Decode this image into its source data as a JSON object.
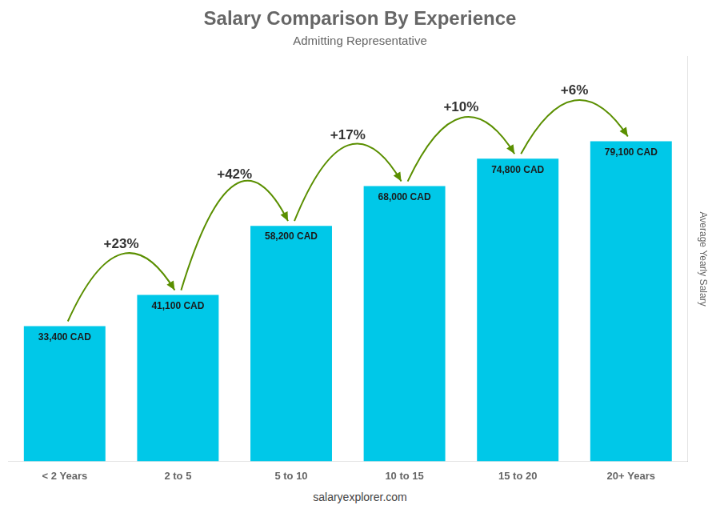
{
  "chart_data": {
    "type": "bar",
    "title": "Salary Comparison By Experience",
    "subtitle": "Admitting Representative",
    "ylabel": "Average Yearly Salary",
    "footer": "salaryexplorer.com",
    "categories": [
      "< 2 Years",
      "2 to 5",
      "5 to 10",
      "10 to 15",
      "15 to 20",
      "20+ Years"
    ],
    "values": [
      33400,
      41100,
      58200,
      68000,
      74800,
      79100
    ],
    "value_labels": [
      "33,400 CAD",
      "41,100 CAD",
      "58,200 CAD",
      "68,000 CAD",
      "74,800 CAD",
      "79,100 CAD"
    ],
    "data_labels": true,
    "color": "#00C8E8",
    "ylim": [
      0,
      100000
    ],
    "tick_labels": "x",
    "grid": false,
    "annotations": [
      {
        "text": "+23%",
        "from": "< 2 Years",
        "to": "2 to 5"
      },
      {
        "text": "+42%",
        "from": "2 to 5",
        "to": "5 to 10"
      },
      {
        "text": "+17%",
        "from": "5 to 10",
        "to": "10 to 15"
      },
      {
        "text": "+10%",
        "from": "10 to 15",
        "to": "15 to 20"
      },
      {
        "text": "+6%",
        "from": "15 to 20",
        "to": "20+ Years"
      }
    ]
  }
}
